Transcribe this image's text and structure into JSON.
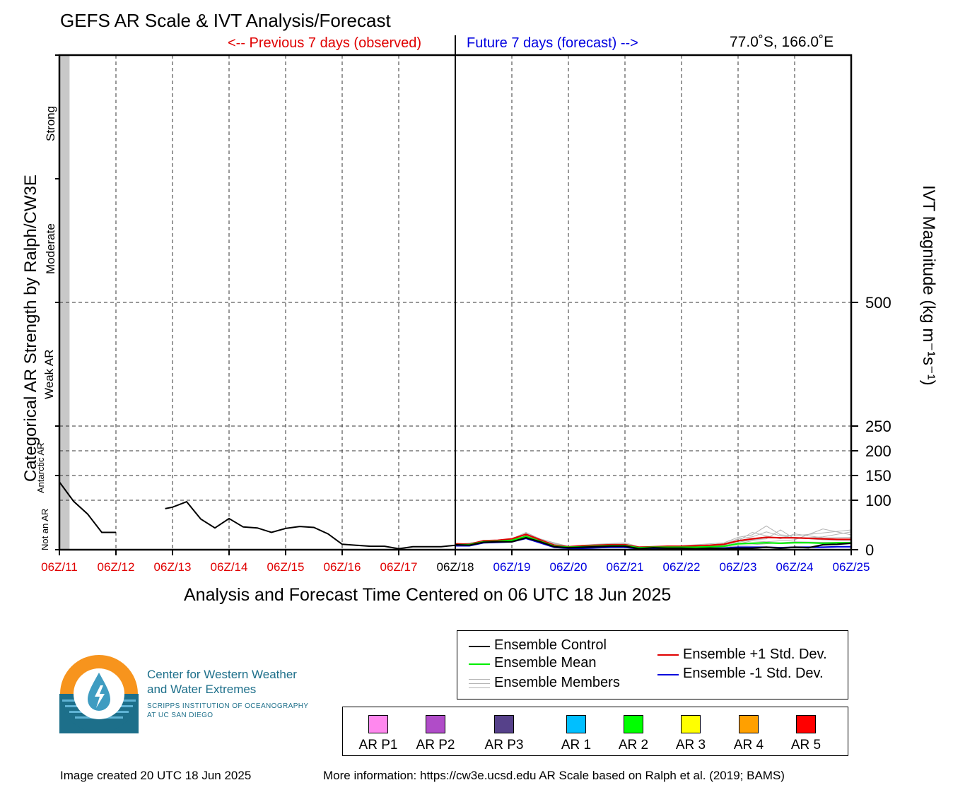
{
  "header": {
    "title": "GEFS AR Scale & IVT Analysis/Forecast",
    "previous_label": "<-- Previous 7 days (observed)",
    "future_label": "Future 7 days (forecast) -->",
    "location": "77.0˚S, 166.0˚E"
  },
  "axes": {
    "left_label": "Categorical AR Strength by Ralph/CW3E",
    "right_label": "IVT Magnitude (kg m⁻¹s⁻¹)",
    "x_label": "Analysis and Forecast Time Centered on 06 UTC 18 Jun 2025",
    "categories": [
      "Not an AR",
      "Antarctic AR",
      "Weak AR",
      "Moderate",
      "Strong"
    ]
  },
  "colors": {
    "observed": "#e00000",
    "forecast": "#0000e0",
    "control": "#000000",
    "mean": "#00ee00",
    "plus_std": "#e00000",
    "minus_std": "#0000dd",
    "members": "#b4b4b4",
    "missing_shade": "#c8c8c8"
  },
  "chart_data": {
    "type": "line",
    "x_unit": "days since 06Z/11 Jun 2025",
    "xlim": [
      0,
      14
    ],
    "ylim": [
      0,
      1000
    ],
    "ylabel": "IVT Magnitude (kg m⁻¹s⁻¹)",
    "yticks": [
      0,
      100,
      150,
      200,
      250,
      500
    ],
    "xtick_labels": [
      "06Z/11",
      "06Z/12",
      "06Z/13",
      "06Z/14",
      "06Z/15",
      "06Z/16",
      "06Z/17",
      "06Z/18",
      "06Z/19",
      "06Z/20",
      "06Z/21",
      "06Z/22",
      "06Z/23",
      "06Z/24",
      "06Z/25"
    ],
    "xtick_groups": [
      "observed",
      "observed",
      "observed",
      "observed",
      "observed",
      "observed",
      "observed",
      "now",
      "forecast",
      "forecast",
      "forecast",
      "forecast",
      "forecast",
      "forecast",
      "forecast"
    ],
    "now_x": 7,
    "category_thresholds": [
      0,
      150,
      250,
      500,
      750,
      1000
    ],
    "missing_shade_x": [
      0,
      0.18
    ],
    "observed_segments": [
      [
        [
          0,
          137
        ],
        [
          0.25,
          98
        ],
        [
          0.5,
          72
        ],
        [
          0.75,
          35
        ],
        [
          1.0,
          35
        ]
      ],
      [
        [
          1.87,
          83
        ],
        [
          2.0,
          86
        ],
        [
          2.25,
          97
        ],
        [
          2.5,
          62
        ],
        [
          2.75,
          44
        ],
        [
          3.0,
          63
        ],
        [
          3.25,
          46
        ],
        [
          3.5,
          44
        ],
        [
          3.75,
          35
        ],
        [
          4.0,
          43
        ],
        [
          4.25,
          47
        ],
        [
          4.5,
          45
        ],
        [
          4.75,
          32
        ],
        [
          5.0,
          11
        ],
        [
          5.25,
          9
        ],
        [
          5.5,
          7
        ],
        [
          5.75,
          7
        ],
        [
          6.0,
          2
        ],
        [
          6.25,
          6
        ],
        [
          6.5,
          6
        ],
        [
          6.75,
          6
        ],
        [
          7.0,
          9
        ]
      ]
    ],
    "series": [
      {
        "name": "Ensemble Control",
        "role": "control",
        "values": [
          [
            7,
            10
          ],
          [
            7.25,
            9
          ],
          [
            7.5,
            15
          ],
          [
            7.75,
            16
          ],
          [
            8.0,
            16
          ],
          [
            8.25,
            24
          ],
          [
            8.5,
            16
          ],
          [
            8.75,
            6
          ],
          [
            9.0,
            4
          ],
          [
            9.25,
            5
          ],
          [
            9.5,
            6
          ],
          [
            9.75,
            7
          ],
          [
            10.0,
            7
          ],
          [
            10.25,
            2
          ],
          [
            10.5,
            4
          ],
          [
            10.75,
            3
          ],
          [
            11.0,
            3
          ],
          [
            11.25,
            2
          ],
          [
            11.5,
            3
          ],
          [
            11.75,
            2
          ],
          [
            12.0,
            3
          ],
          [
            12.25,
            3
          ],
          [
            12.5,
            5
          ],
          [
            12.75,
            3
          ],
          [
            13.0,
            5
          ],
          [
            13.25,
            4
          ],
          [
            13.5,
            10
          ],
          [
            13.75,
            11
          ],
          [
            14.0,
            13
          ]
        ]
      },
      {
        "name": "Ensemble Mean",
        "role": "mean",
        "values": [
          [
            7,
            10
          ],
          [
            7.25,
            10
          ],
          [
            7.5,
            16
          ],
          [
            7.75,
            17
          ],
          [
            8.0,
            19
          ],
          [
            8.25,
            27
          ],
          [
            8.5,
            17
          ],
          [
            8.75,
            7
          ],
          [
            9.0,
            5
          ],
          [
            9.25,
            6
          ],
          [
            9.5,
            7
          ],
          [
            9.75,
            8
          ],
          [
            10.0,
            8
          ],
          [
            10.25,
            4
          ],
          [
            10.5,
            5
          ],
          [
            10.75,
            5
          ],
          [
            11.0,
            5
          ],
          [
            11.25,
            5
          ],
          [
            11.5,
            6
          ],
          [
            11.75,
            7
          ],
          [
            12.0,
            12
          ],
          [
            12.25,
            13
          ],
          [
            12.5,
            14
          ],
          [
            12.75,
            13
          ],
          [
            13.0,
            14
          ],
          [
            13.25,
            14
          ],
          [
            13.5,
            13
          ],
          [
            13.75,
            14
          ],
          [
            14.0,
            14
          ]
        ]
      },
      {
        "name": "Ensemble +1 Std. Dev.",
        "role": "plus_std",
        "values": [
          [
            7,
            12
          ],
          [
            7.25,
            11
          ],
          [
            7.5,
            18
          ],
          [
            7.75,
            19
          ],
          [
            8.0,
            22
          ],
          [
            8.25,
            31
          ],
          [
            8.5,
            20
          ],
          [
            8.75,
            9
          ],
          [
            9.0,
            6
          ],
          [
            9.25,
            8
          ],
          [
            9.5,
            9
          ],
          [
            9.75,
            10
          ],
          [
            10.0,
            10
          ],
          [
            10.25,
            5
          ],
          [
            10.5,
            6
          ],
          [
            10.75,
            7
          ],
          [
            11.0,
            7
          ],
          [
            11.25,
            8
          ],
          [
            11.5,
            9
          ],
          [
            11.75,
            11
          ],
          [
            12.0,
            18
          ],
          [
            12.25,
            22
          ],
          [
            12.5,
            25
          ],
          [
            12.75,
            24
          ],
          [
            13.0,
            24
          ],
          [
            13.25,
            23
          ],
          [
            13.5,
            22
          ],
          [
            13.75,
            21
          ],
          [
            14.0,
            21
          ]
        ]
      },
      {
        "name": "Ensemble -1 Std. Dev.",
        "role": "minus_std",
        "values": [
          [
            7,
            8
          ],
          [
            7.25,
            8
          ],
          [
            7.5,
            14
          ],
          [
            7.75,
            15
          ],
          [
            8.0,
            16
          ],
          [
            8.25,
            23
          ],
          [
            8.5,
            14
          ],
          [
            8.75,
            5
          ],
          [
            9.0,
            3
          ],
          [
            9.25,
            3
          ],
          [
            9.5,
            4
          ],
          [
            9.75,
            5
          ],
          [
            10.0,
            5
          ],
          [
            10.25,
            2
          ],
          [
            10.5,
            3
          ],
          [
            10.75,
            3
          ],
          [
            11.0,
            2
          ],
          [
            11.25,
            2
          ],
          [
            11.5,
            3
          ],
          [
            11.75,
            3
          ],
          [
            12.0,
            5
          ],
          [
            12.25,
            5
          ],
          [
            12.5,
            5
          ],
          [
            12.75,
            4
          ],
          [
            13.0,
            5
          ],
          [
            13.25,
            5
          ],
          [
            13.5,
            5
          ],
          [
            13.75,
            6
          ],
          [
            14.0,
            6
          ]
        ]
      }
    ],
    "members": [
      [
        [
          7,
          10
        ],
        [
          7.5,
          17
        ],
        [
          8.0,
          22
        ],
        [
          8.25,
          35
        ],
        [
          8.5,
          22
        ],
        [
          9.0,
          6
        ],
        [
          9.5,
          10
        ],
        [
          10.0,
          12
        ],
        [
          10.25,
          5
        ],
        [
          10.75,
          6
        ],
        [
          11.25,
          10
        ],
        [
          11.75,
          14
        ],
        [
          12.0,
          25
        ],
        [
          12.25,
          30
        ],
        [
          12.5,
          48
        ],
        [
          12.75,
          30
        ],
        [
          13.0,
          28
        ],
        [
          13.5,
          34
        ],
        [
          14.0,
          40
        ]
      ],
      [
        [
          7,
          10
        ],
        [
          7.5,
          15
        ],
        [
          8.0,
          18
        ],
        [
          8.25,
          28
        ],
        [
          8.5,
          18
        ],
        [
          9.0,
          5
        ],
        [
          9.5,
          8
        ],
        [
          10.0,
          9
        ],
        [
          10.25,
          4
        ],
        [
          10.75,
          5
        ],
        [
          11.25,
          6
        ],
        [
          11.75,
          9
        ],
        [
          12.0,
          15
        ],
        [
          12.25,
          20
        ],
        [
          12.5,
          22
        ],
        [
          12.75,
          40
        ],
        [
          13.0,
          22
        ],
        [
          13.5,
          26
        ],
        [
          14.0,
          36
        ]
      ],
      [
        [
          7,
          10
        ],
        [
          7.5,
          16
        ],
        [
          8.0,
          20
        ],
        [
          8.25,
          31
        ],
        [
          8.5,
          19
        ],
        [
          9.0,
          6
        ],
        [
          9.5,
          9
        ],
        [
          10.0,
          10
        ],
        [
          10.25,
          5
        ],
        [
          10.75,
          6
        ],
        [
          11.25,
          7
        ],
        [
          11.75,
          10
        ],
        [
          12.0,
          18
        ],
        [
          12.25,
          35
        ],
        [
          12.5,
          28
        ],
        [
          12.75,
          22
        ],
        [
          13.0,
          32
        ],
        [
          13.5,
          24
        ],
        [
          14.0,
          25
        ]
      ],
      [
        [
          7,
          10
        ],
        [
          7.5,
          15
        ],
        [
          8.0,
          17
        ],
        [
          8.25,
          26
        ],
        [
          8.5,
          16
        ],
        [
          9.0,
          5
        ],
        [
          9.5,
          7
        ],
        [
          10.0,
          8
        ],
        [
          10.25,
          4
        ],
        [
          10.75,
          4
        ],
        [
          11.25,
          5
        ],
        [
          11.75,
          8
        ],
        [
          12.0,
          12
        ],
        [
          12.25,
          18
        ],
        [
          12.5,
          16
        ],
        [
          12.75,
          18
        ],
        [
          13.0,
          20
        ],
        [
          13.5,
          42
        ],
        [
          14.0,
          30
        ]
      ],
      [
        [
          7,
          10
        ],
        [
          7.5,
          17
        ],
        [
          8.0,
          21
        ],
        [
          8.25,
          33
        ],
        [
          8.5,
          21
        ],
        [
          9.0,
          7
        ],
        [
          9.5,
          11
        ],
        [
          10.0,
          14
        ],
        [
          10.25,
          6
        ],
        [
          10.75,
          7
        ],
        [
          11.25,
          8
        ],
        [
          11.75,
          12
        ],
        [
          12.0,
          22
        ],
        [
          12.25,
          26
        ],
        [
          12.5,
          36
        ],
        [
          12.75,
          28
        ],
        [
          13.0,
          24
        ],
        [
          13.5,
          20
        ],
        [
          14.0,
          18
        ]
      ],
      [
        [
          7,
          10
        ],
        [
          7.5,
          14
        ],
        [
          8.0,
          16
        ],
        [
          8.25,
          25
        ],
        [
          8.5,
          15
        ],
        [
          9.0,
          4
        ],
        [
          9.5,
          6
        ],
        [
          10.0,
          7
        ],
        [
          10.25,
          3
        ],
        [
          10.75,
          4
        ],
        [
          11.25,
          4
        ],
        [
          11.75,
          5
        ],
        [
          12.0,
          8
        ],
        [
          12.25,
          10
        ],
        [
          12.5,
          12
        ],
        [
          12.75,
          14
        ],
        [
          13.0,
          16
        ],
        [
          13.5,
          15
        ],
        [
          14.0,
          14
        ]
      ]
    ]
  },
  "legend": {
    "control": "Ensemble Control",
    "mean": "Ensemble Mean",
    "members": "Ensemble Members",
    "plus_std": "Ensemble +1 Std. Dev.",
    "minus_std": "Ensemble -1 Std. Dev."
  },
  "ar_scale": [
    {
      "label": "AR P1",
      "color": "#ff88ee"
    },
    {
      "label": "AR P2",
      "color": "#b04cc8"
    },
    {
      "label": "AR P3",
      "color": "#56418a"
    },
    {
      "label": "AR 1",
      "color": "#00bfff"
    },
    {
      "label": "AR 2",
      "color": "#00ff00"
    },
    {
      "label": "AR 3",
      "color": "#ffff00"
    },
    {
      "label": "AR 4",
      "color": "#ffa000"
    },
    {
      "label": "AR 5",
      "color": "#ff0000"
    }
  ],
  "logo": {
    "line1": "Center for Western Weather",
    "line2": "and Water Extremes",
    "line3": "SCRIPPS INSTITUTION OF OCEANOGRAPHY",
    "line4": "AT UC SAN DIEGO",
    "colors": {
      "orange": "#f7941d",
      "teal": "#1d6f8a",
      "blue": "#3f9cc1"
    }
  },
  "footer": {
    "created": "Image created 20 UTC 18 Jun 2025",
    "info": "More information: https://cw3e.ucsd.edu AR Scale based on Ralph et al. (2019; BAMS)"
  }
}
